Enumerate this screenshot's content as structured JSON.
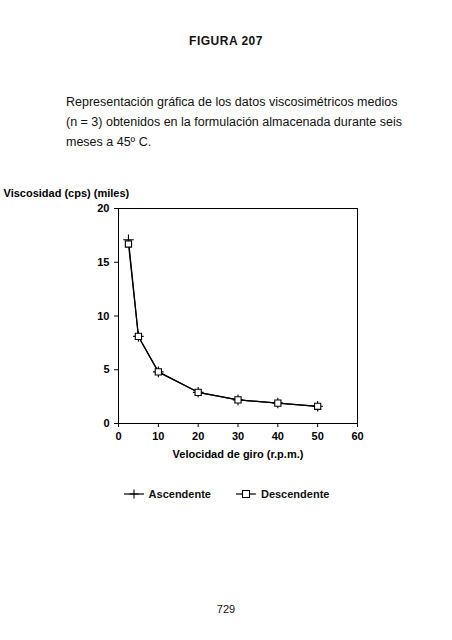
{
  "chart_data": {
    "type": "line",
    "title": "FIGURA 207",
    "subtitle": "Representación gráfica de los datos viscosimétricos medios (n = 3) obtenidos en la formulación almacenada durante seis meses a 45º C.",
    "annotations": [
      "729"
    ],
    "x_label": "Velocidad de giro (r.p.m.)",
    "y_label": "Viscosidad (cps) (miles)",
    "x": [
      2.5,
      5,
      10,
      20,
      30,
      40,
      50
    ],
    "series": [
      {
        "name": "Ascendente",
        "color": "#000000",
        "marker": "plus",
        "line_style": "solid",
        "values": [
          17.1,
          8.1,
          4.8,
          2.9,
          2.2,
          1.9,
          1.6
        ]
      },
      {
        "name": "Descendente",
        "color": "#000000",
        "marker": "square",
        "line_style": "solid",
        "values": [
          16.7,
          8.1,
          4.8,
          2.9,
          2.2,
          1.9,
          1.6
        ]
      }
    ],
    "xlim": [
      0,
      60
    ],
    "xticks": [
      0,
      10,
      20,
      30,
      40,
      50,
      60
    ],
    "ylim": [
      0,
      20
    ],
    "yticks": [
      0,
      5,
      10,
      15,
      20
    ],
    "grid": false,
    "legend": "bottom"
  }
}
